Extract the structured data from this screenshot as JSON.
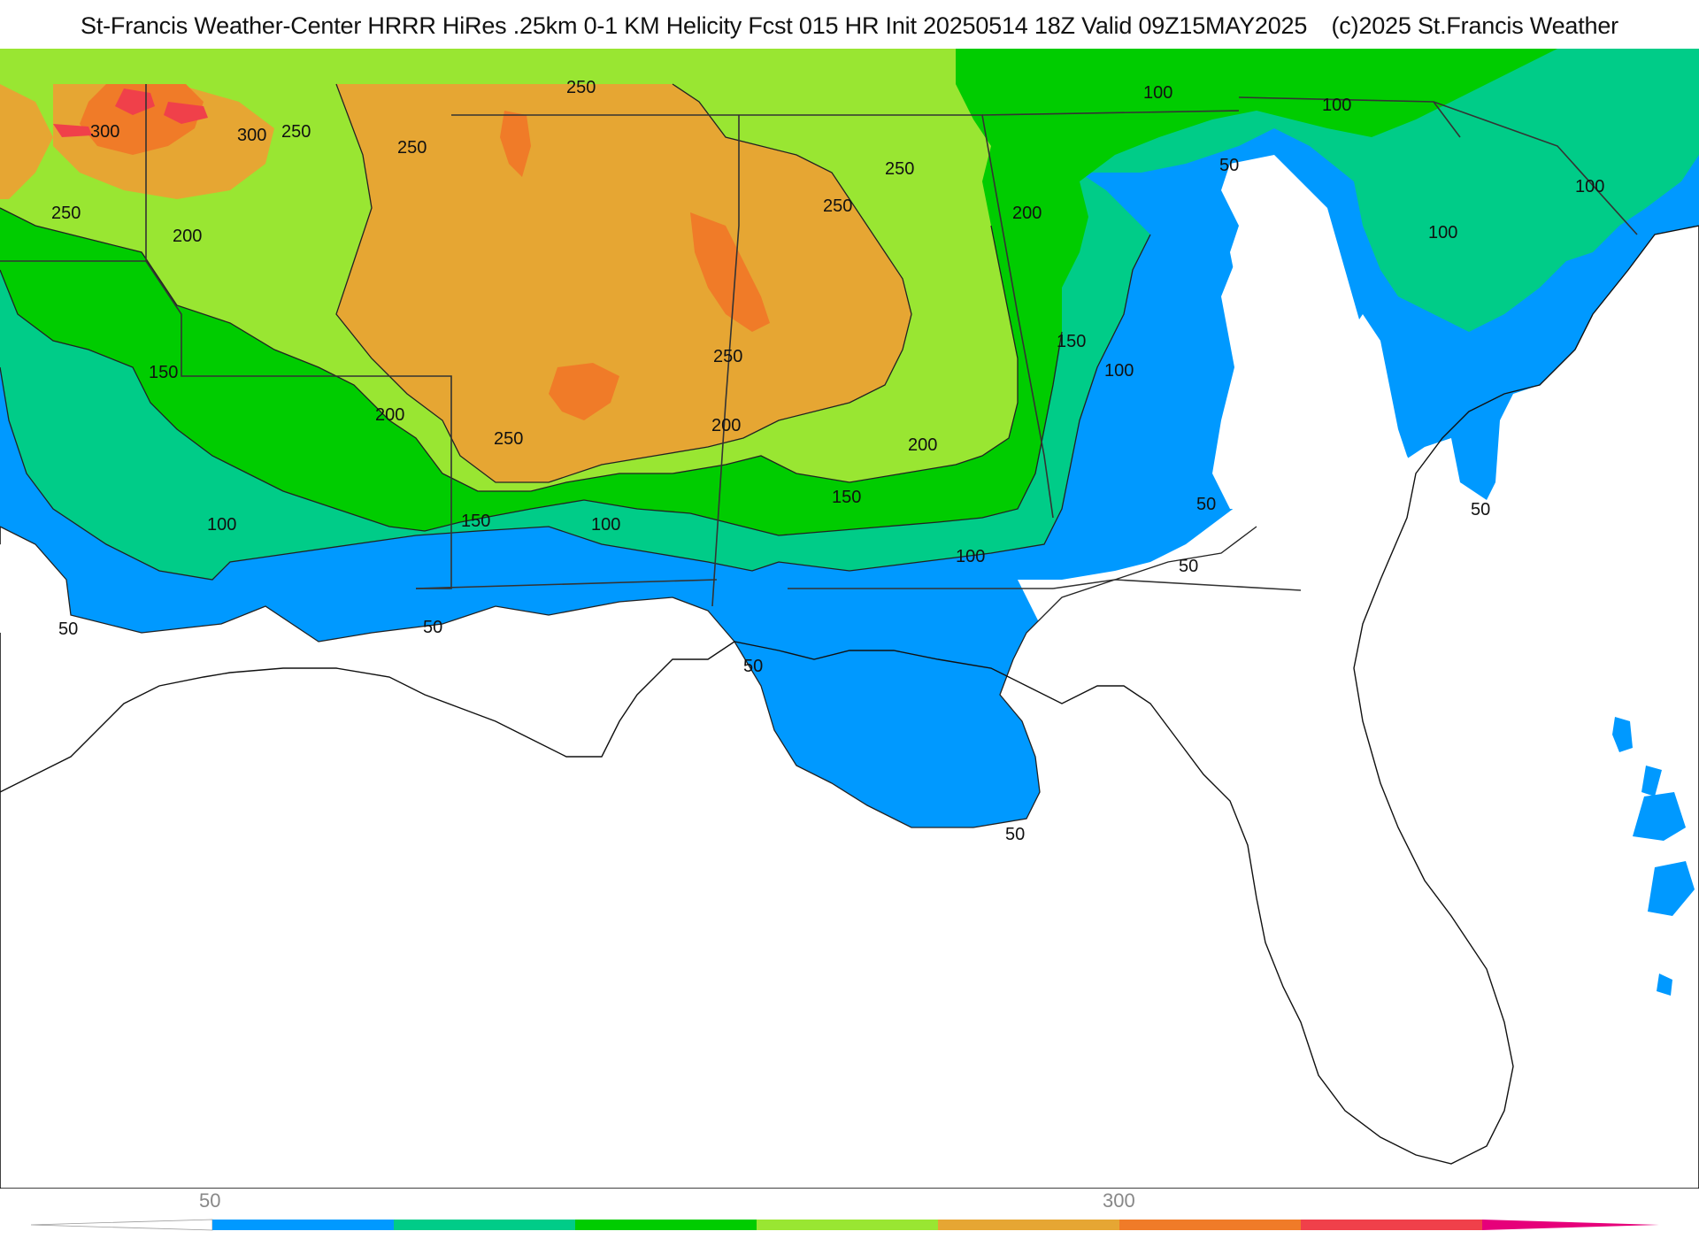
{
  "title": {
    "main": "St-Francis Weather-Center HRRR HiRes .25km 0-1 KM Helicity Fcst 015 HR Init 20250514 18Z  Valid 09Z15MAY2025",
    "credit": "(c)2025 St.Francis Weather"
  },
  "legend": {
    "tick_labels": [
      "50",
      "300"
    ],
    "colors": [
      "#0099ff",
      "#00cc88",
      "#00cc00",
      "#99e632",
      "#e6a633",
      "#f07b28",
      "#f0404a",
      "#e6007a"
    ]
  },
  "contour_labels": {
    "west_300_a": "300",
    "west_300_b": "300",
    "west_250_a": "250",
    "west_250_b": "250",
    "west_250_c": "250",
    "west_250_d": "250",
    "west_200_a": "200",
    "west_200_b": "200",
    "west_150": "150",
    "west_100": "100",
    "west_50": "50",
    "central_250_a": "250",
    "central_250_b": "250",
    "central_250_c": "250",
    "central_250_d": "250",
    "central_200_a": "200",
    "central_200_b": "200",
    "central_200_c": "200",
    "central_150_a": "150",
    "central_150_b": "150",
    "central_100_a": "100",
    "central_100_b": "100",
    "gulf_50_a": "50",
    "gulf_50_b": "50",
    "gulf_50_c": "50",
    "east_150": "150",
    "east_100_a": "100",
    "east_100_b": "100",
    "east_100_c": "100",
    "east_100_d": "100",
    "east_100_e": "100",
    "east_50_a": "50",
    "east_50_b": "50",
    "east_50_c": "50",
    "east_50_d": "50"
  }
}
